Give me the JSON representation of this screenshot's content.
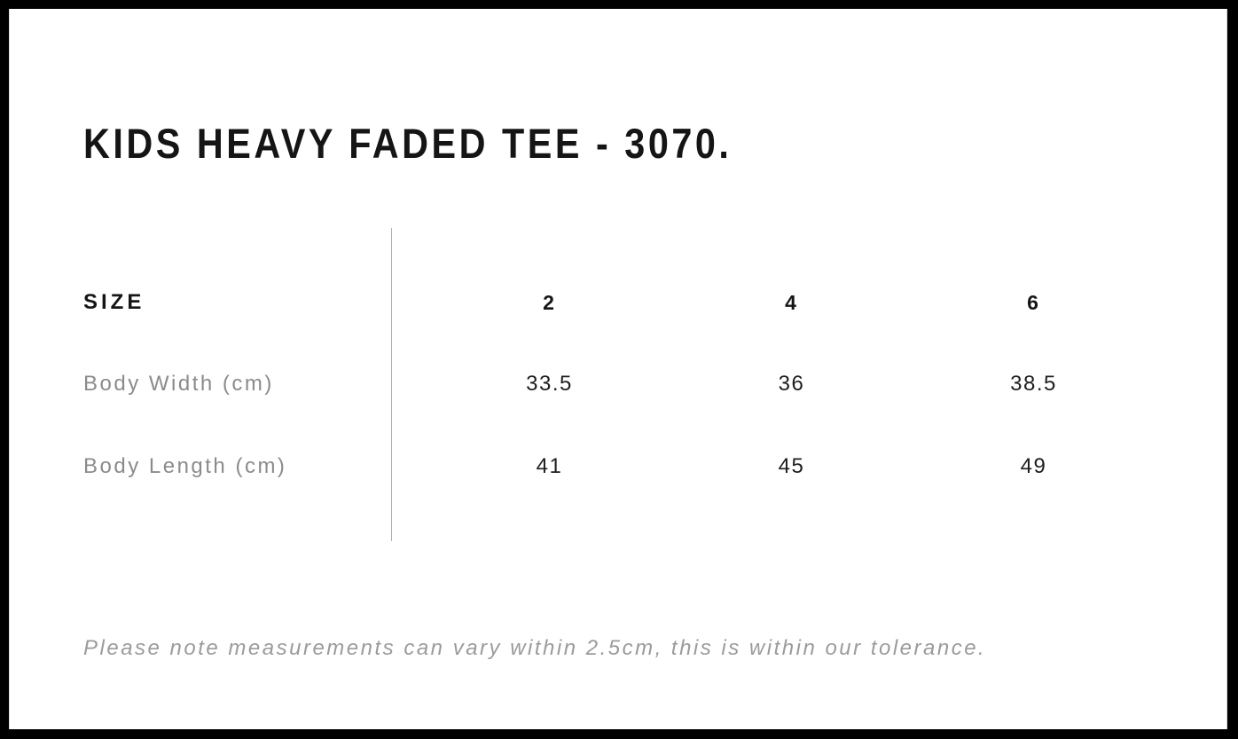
{
  "page": {
    "title": "KIDS HEAVY FADED TEE - 3070.",
    "tolerance_note": "Please note measurements can vary within 2.5cm, this is within our tolerance."
  },
  "size_chart": {
    "header_label": "SIZE",
    "sizes": [
      "2",
      "4",
      "6"
    ],
    "rows": [
      {
        "label": "Body Width (cm)",
        "values": [
          "33.5",
          "36",
          "38.5"
        ]
      },
      {
        "label": "Body Length (cm)",
        "values": [
          "41",
          "45",
          "49"
        ]
      }
    ]
  },
  "colors": {
    "frame": "#000000",
    "background": "#ffffff",
    "heading_text": "#151515",
    "muted_label": "#8b8b8b",
    "note_text": "#9b9b9b",
    "divider": "#b0b0b0"
  }
}
